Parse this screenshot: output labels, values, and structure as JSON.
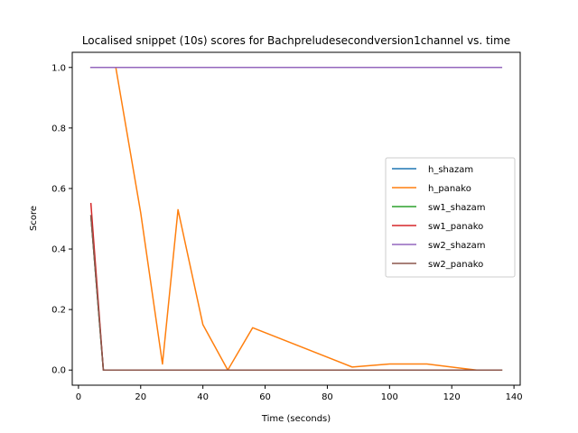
{
  "chart_data": {
    "type": "line",
    "title": "Localised snippet (10s) scores for Bachpreludesecondversion1channel vs. time",
    "xlabel": "Time (seconds)",
    "ylabel": "Score",
    "xlim": [
      -2,
      142
    ],
    "ylim": [
      -0.05,
      1.05
    ],
    "xticks": [
      0,
      20,
      40,
      60,
      80,
      100,
      120,
      140
    ],
    "yticks": [
      0.0,
      0.2,
      0.4,
      0.6,
      0.8,
      1.0
    ],
    "xtick_labels": [
      "0",
      "20",
      "40",
      "60",
      "80",
      "100",
      "120",
      "140"
    ],
    "ytick_labels": [
      "0.0",
      "0.2",
      "0.4",
      "0.6",
      "0.8",
      "1.0"
    ],
    "grid": false,
    "legend_position": "center-right",
    "series": [
      {
        "name": "h_shazam",
        "color": "#1f77b4",
        "x": [
          4,
          8,
          136
        ],
        "y": [
          0.51,
          0.0,
          0.0
        ]
      },
      {
        "name": "h_panako",
        "color": "#ff7f0e",
        "x": [
          4,
          12,
          20,
          27,
          32,
          40,
          48,
          56,
          88,
          100,
          112,
          128,
          136
        ],
        "y": [
          1.0,
          1.0,
          0.52,
          0.02,
          0.53,
          0.15,
          0.0,
          0.14,
          0.01,
          0.02,
          0.02,
          0.0,
          0.0
        ]
      },
      {
        "name": "sw1_shazam",
        "color": "#2ca02c",
        "x": [
          4,
          8,
          136
        ],
        "y": [
          0.51,
          0.0,
          0.0
        ]
      },
      {
        "name": "sw1_panako",
        "color": "#d62728",
        "x": [
          4,
          8,
          136
        ],
        "y": [
          0.55,
          0.0,
          0.0
        ]
      },
      {
        "name": "sw2_shazam",
        "color": "#9467bd",
        "x": [
          4,
          136
        ],
        "y": [
          1.0,
          1.0
        ]
      },
      {
        "name": "sw2_panako",
        "color": "#8c564b",
        "x": [
          4,
          8,
          136
        ],
        "y": [
          0.51,
          0.0,
          0.0
        ]
      }
    ]
  }
}
